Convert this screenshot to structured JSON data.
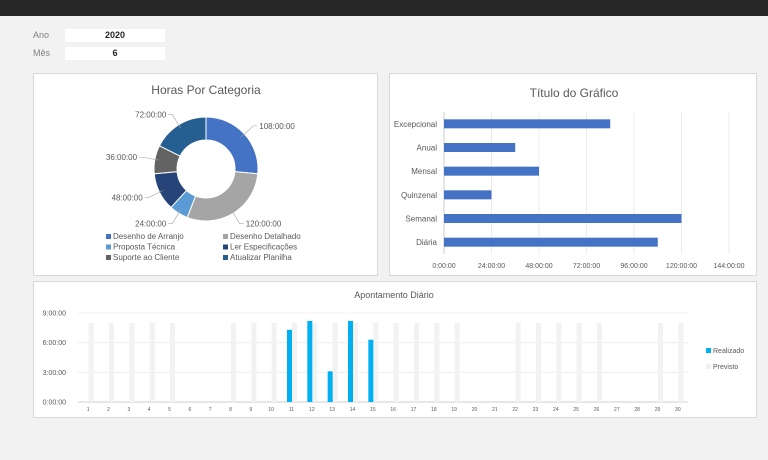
{
  "filters": {
    "ano_label": "Ano",
    "ano_value": "2020",
    "mes_label": "Mês",
    "mes_value": "6"
  },
  "colors": {
    "blue": "#4472c4",
    "gray": "#a5a5a5",
    "lightblue": "#5b9bd5",
    "navy": "#264478",
    "darkgray": "#636363",
    "steel": "#255e91",
    "cyan": "#00b0f0",
    "planned": "#f2f2f2"
  },
  "chart_data": [
    {
      "type": "pie",
      "variant": "donut",
      "title": "Horas Por Categoria",
      "slices": [
        {
          "name": "Desenho de Arranjo",
          "value": 108,
          "label": "108:00:00",
          "color": "#4472c4"
        },
        {
          "name": "Desenho Detalhado",
          "value": 120,
          "label": "120:00:00",
          "color": "#a5a5a5"
        },
        {
          "name": "Proposta Técnica",
          "value": 24,
          "label": "24:00:00",
          "color": "#5b9bd5"
        },
        {
          "name": "Ler Especificações",
          "value": 48,
          "label": "48:00:00",
          "color": "#264478"
        },
        {
          "name": "Suporte ao Cliente",
          "value": 36,
          "label": "36:00:00",
          "color": "#636363"
        },
        {
          "name": "Atualizar Planilha",
          "value": 72,
          "label": "72:00:00",
          "color": "#255e91"
        }
      ],
      "legend_position": "bottom"
    },
    {
      "type": "bar",
      "orientation": "horizontal",
      "title": "Título do Gráfico",
      "categories": [
        "Excepcional",
        "Anual",
        "Mensal",
        "Quinzenal",
        "Semanal",
        "Diária"
      ],
      "values": [
        84,
        36,
        48,
        24,
        120,
        108
      ],
      "xlim": [
        0,
        144
      ],
      "x_ticks": [
        "0:00:00",
        "24:00:00",
        "48:00:00",
        "72:00:00",
        "96:00:00",
        "120:00:00",
        "144:00:00"
      ],
      "color": "#4472c4",
      "grid": true
    },
    {
      "type": "bar",
      "title": "Apontamento Diário",
      "categories": [
        "1",
        "2",
        "3",
        "4",
        "5",
        "6",
        "7",
        "8",
        "9",
        "10",
        "11",
        "12",
        "13",
        "14",
        "15",
        "16",
        "17",
        "18",
        "19",
        "20",
        "21",
        "22",
        "23",
        "24",
        "25",
        "26",
        "27",
        "28",
        "29",
        "30"
      ],
      "series": [
        {
          "name": "Realizado",
          "color": "#00b0f0",
          "values": [
            0,
            0,
            0,
            0,
            0,
            0,
            0,
            0,
            0,
            0,
            7.3,
            8.2,
            3.1,
            8.2,
            6.3,
            0,
            0,
            0,
            0,
            0,
            0,
            0,
            0,
            0,
            0,
            0,
            0,
            0,
            0,
            0
          ]
        },
        {
          "name": "Previsto",
          "color": "#f2f2f2",
          "values": [
            8,
            8,
            8,
            8,
            8,
            0,
            0,
            8,
            8,
            8,
            8,
            8,
            8,
            8,
            8,
            8,
            8,
            8,
            8,
            0,
            0,
            8,
            8,
            8,
            8,
            8,
            0,
            0,
            8,
            8
          ]
        }
      ],
      "ylim": [
        0,
        9
      ],
      "y_ticks": [
        "0:00:00",
        "3:00:00",
        "6:00:00",
        "9:00:00"
      ],
      "legend_position": "right",
      "grid": true
    }
  ]
}
